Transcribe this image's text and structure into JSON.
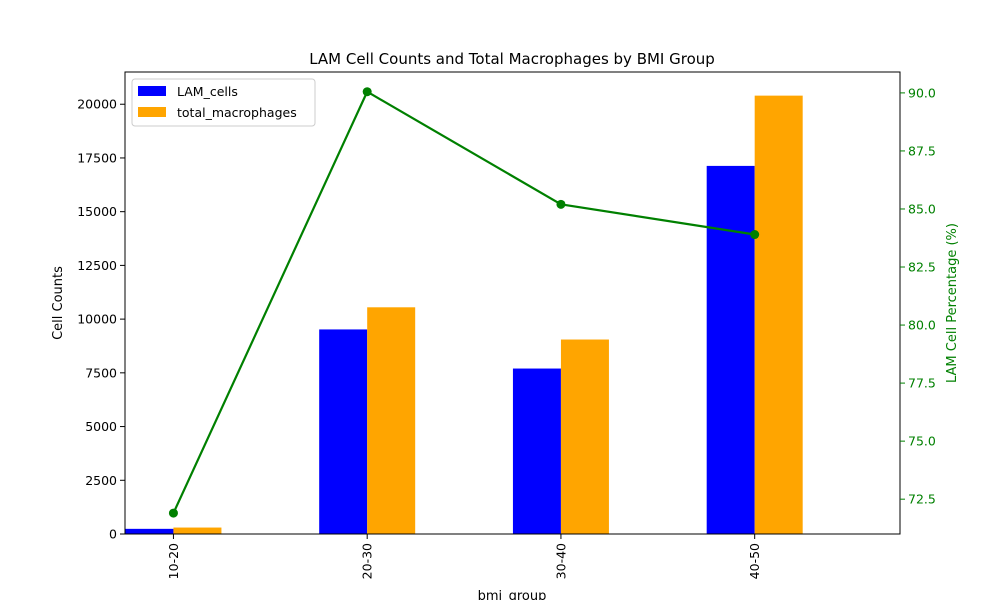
{
  "chart_data": {
    "type": "bar",
    "title": "LAM Cell Counts and Total Macrophages by BMI Group",
    "xlabel": "bmi_group",
    "ylabel": "Cell Counts",
    "y2label": "LAM Cell Percentage (%)",
    "categories": [
      "10-20",
      "20-30",
      "30-40",
      "40-50"
    ],
    "series": [
      {
        "name": "LAM_cells",
        "values": [
          240,
          9520,
          7700,
          17130
        ],
        "color": "#0000ff"
      },
      {
        "name": "total_macrophages",
        "values": [
          300,
          10550,
          9050,
          20400
        ],
        "color": "#ffa500"
      }
    ],
    "line_series": {
      "values": [
        71.9,
        90.05,
        85.2,
        83.9
      ],
      "color": "#008000",
      "axis": "right"
    },
    "ylim": [
      0,
      21500
    ],
    "y2lim": [
      71.0,
      90.9
    ],
    "yticks": [
      0,
      2500,
      5000,
      7500,
      10000,
      12500,
      15000,
      17500,
      20000
    ],
    "y2ticks": [
      72.5,
      75.0,
      77.5,
      80.0,
      82.5,
      85.0,
      87.5,
      90.0
    ],
    "ytick_labels": [
      "0",
      "2500",
      "5000",
      "7500",
      "10000",
      "12500",
      "15000",
      "17500",
      "20000"
    ],
    "y2tick_labels": [
      "72.5",
      "75.0",
      "77.5",
      "80.0",
      "82.5",
      "85.0",
      "87.5",
      "90.0"
    ],
    "legend": "top-left",
    "grid": false
  }
}
